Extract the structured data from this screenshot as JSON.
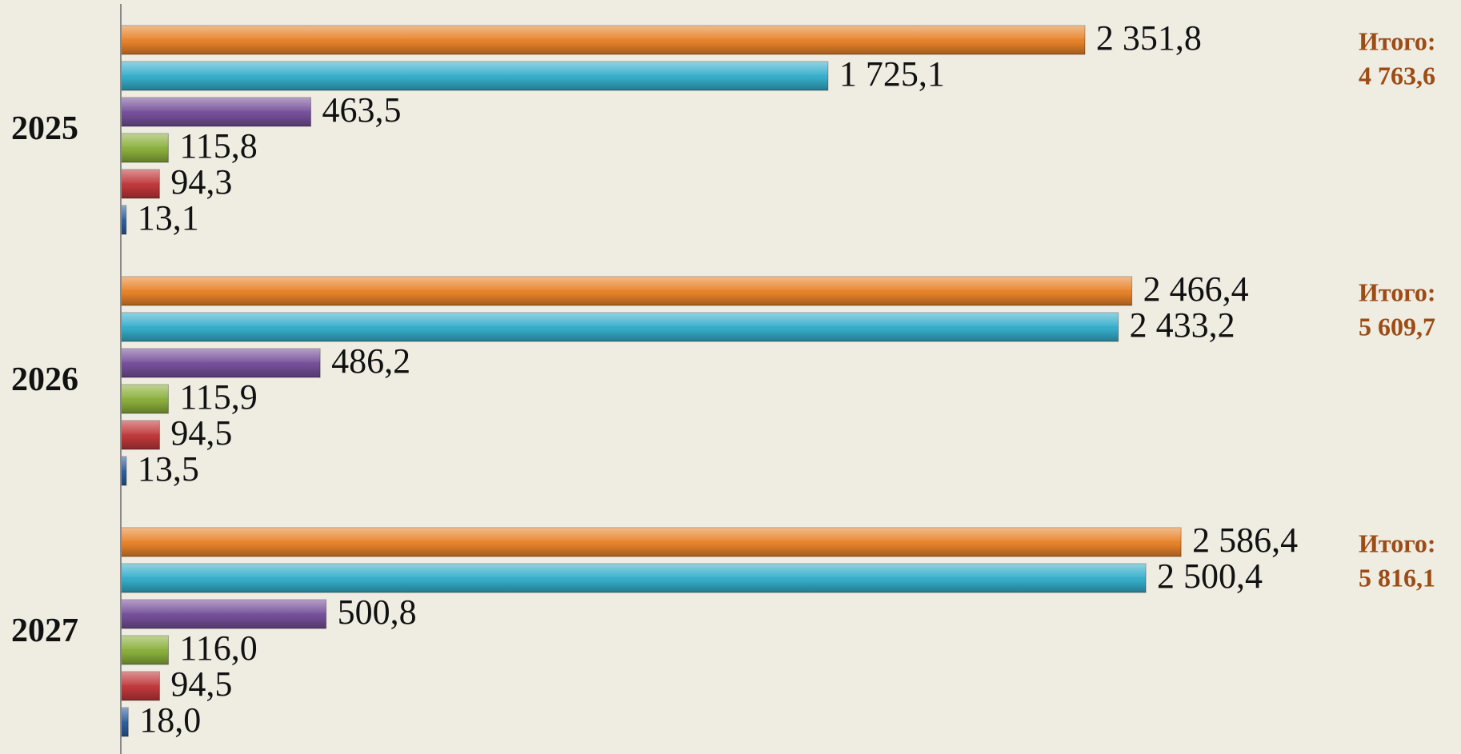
{
  "chart_data": {
    "type": "bar",
    "orientation": "horizontal",
    "categories": [
      "2025",
      "2026",
      "2027"
    ],
    "series": [
      {
        "color": "#e8832a",
        "values": [
          2351.8,
          2466.4,
          2586.4
        ],
        "value_labels": [
          "2 351,8",
          "2 466,4",
          "2 586,4"
        ]
      },
      {
        "color": "#35aecb",
        "values": [
          1725.1,
          2433.2,
          2500.4
        ],
        "value_labels": [
          "1 725,1",
          "2 433,2",
          "2 500,4"
        ]
      },
      {
        "color": "#76509a",
        "values": [
          463.5,
          486.2,
          500.8
        ],
        "value_labels": [
          "463,5",
          "486,2",
          "500,8"
        ]
      },
      {
        "color": "#8bb03c",
        "values": [
          115.8,
          115.9,
          116.0
        ],
        "value_labels": [
          "115,8",
          "115,9",
          "116,0"
        ]
      },
      {
        "color": "#c0383a",
        "values": [
          94.3,
          94.5,
          94.5
        ],
        "value_labels": [
          "94,3",
          "94,5",
          "94,5"
        ]
      },
      {
        "color": "#2d5f9f",
        "values": [
          13.1,
          13.5,
          18.0
        ],
        "value_labels": [
          "13,1",
          "13,5",
          "18,0"
        ]
      }
    ],
    "total_prefix": "Итого:",
    "totals": [
      4763.6,
      5609.7,
      5816.1
    ],
    "total_labels": [
      "4 763,6",
      "5 609,7",
      "5 816,1"
    ],
    "total_color": "#9c4c14",
    "xlim": [
      0,
      3000
    ]
  }
}
